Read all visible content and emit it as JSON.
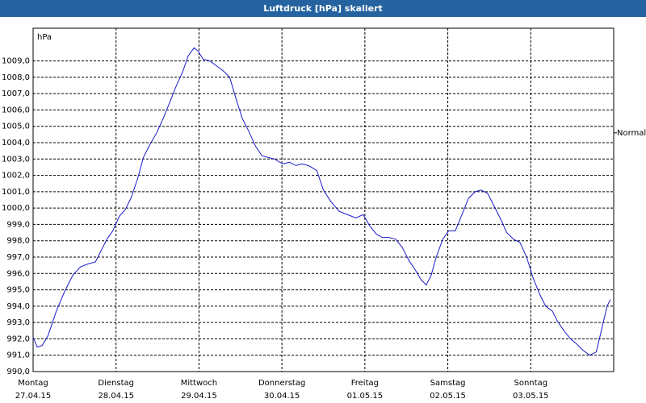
{
  "chart_data": {
    "type": "line",
    "title": "Luftdruck [hPa] skaliert",
    "y_label": "hPa",
    "x": [
      0,
      0.05,
      0.11,
      0.18,
      0.28,
      0.38,
      0.48,
      0.57,
      0.67,
      0.75,
      0.82,
      0.89,
      0.96,
      1.04,
      1.11,
      1.18,
      1.26,
      1.33,
      1.41,
      1.49,
      1.57,
      1.65,
      1.72,
      1.8,
      1.87,
      1.94,
      1.99,
      2.05,
      2.13,
      2.21,
      2.29,
      2.37,
      2.44,
      2.52,
      2.6,
      2.68,
      2.76,
      2.83,
      2.91,
      3.01,
      3.09,
      3.17,
      3.24,
      3.32,
      3.42,
      3.5,
      3.59,
      3.69,
      3.79,
      3.89,
      3.98,
      4.06,
      4.14,
      4.21,
      4.29,
      4.37,
      4.45,
      4.53,
      4.61,
      4.68,
      4.74,
      4.8,
      4.86,
      4.94,
      5.01,
      5.09,
      5.17,
      5.25,
      5.33,
      5.4,
      5.48,
      5.56,
      5.64,
      5.71,
      5.79,
      5.87,
      5.95,
      6.03,
      6.11,
      6.18,
      6.26,
      6.32,
      6.4,
      6.48,
      6.55,
      6.63,
      6.71,
      6.79,
      6.86,
      6.92,
      6.96
    ],
    "series": [
      {
        "color": "#1a1acc",
        "values": [
          992.1,
          991.5,
          991.6,
          992.2,
          993.7,
          994.9,
          995.9,
          996.4,
          996.6,
          996.7,
          997.4,
          998.1,
          998.6,
          999.5,
          999.9,
          1000.6,
          1001.8,
          1003.1,
          1003.9,
          1004.6,
          1005.5,
          1006.5,
          1007.4,
          1008.3,
          1009.3,
          1009.8,
          1009.6,
          1009.1,
          1009.0,
          1008.7,
          1008.4,
          1008.0,
          1006.8,
          1005.5,
          1004.7,
          1003.8,
          1003.2,
          1003.1,
          1003.0,
          1002.7,
          1002.8,
          1002.6,
          1002.7,
          1002.6,
          1002.3,
          1001.1,
          1000.4,
          999.8,
          999.6,
          999.4,
          999.6,
          998.9,
          998.4,
          998.2,
          998.2,
          998.1,
          997.6,
          996.8,
          996.2,
          995.6,
          995.3,
          995.9,
          997.0,
          998.1,
          998.6,
          998.6,
          999.6,
          1000.6,
          1001.0,
          1001.1,
          1000.9,
          1000.1,
          999.3,
          998.5,
          998.1,
          997.9,
          997.0,
          995.7,
          994.7,
          994.0,
          993.7,
          993.1,
          992.5,
          992.0,
          991.7,
          991.3,
          991.0,
          991.2,
          992.7,
          994.0,
          994.4
        ]
      }
    ],
    "xlim": [
      0,
      7
    ],
    "xticks": [
      {
        "value": 0,
        "label": [
          "Montag",
          "27.04.15"
        ]
      },
      {
        "value": 1,
        "label": [
          "Dienstag",
          "28.04.15"
        ]
      },
      {
        "value": 2,
        "label": [
          "Mittwoch",
          "29.04.15"
        ]
      },
      {
        "value": 3,
        "label": [
          "Donnerstag",
          "30.04.15"
        ]
      },
      {
        "value": 4,
        "label": [
          "Freitag",
          "01.05.15"
        ]
      },
      {
        "value": 5,
        "label": [
          "Samstag",
          "02.05.15"
        ]
      },
      {
        "value": 6,
        "label": [
          "Sonntag",
          "03.05.15"
        ]
      }
    ],
    "ylim": [
      990,
      1011
    ],
    "yticks": [
      {
        "value": 990,
        "label": "990,0"
      },
      {
        "value": 991,
        "label": "991,0"
      },
      {
        "value": 992,
        "label": "992,0"
      },
      {
        "value": 993,
        "label": "993,0"
      },
      {
        "value": 994,
        "label": "994,0"
      },
      {
        "value": 995,
        "label": "995,0"
      },
      {
        "value": 996,
        "label": "996,0"
      },
      {
        "value": 997,
        "label": "997,0"
      },
      {
        "value": 998,
        "label": "998,0"
      },
      {
        "value": 999,
        "label": "999,0"
      },
      {
        "value": 1000,
        "label": "1000,0"
      },
      {
        "value": 1001,
        "label": "1001,0"
      },
      {
        "value": 1002,
        "label": "1002,0"
      },
      {
        "value": 1003,
        "label": "1003,0"
      },
      {
        "value": 1004,
        "label": "1004,0"
      },
      {
        "value": 1005,
        "label": "1005,0"
      },
      {
        "value": 1006,
        "label": "1006,0"
      },
      {
        "value": 1007,
        "label": "1007,0"
      },
      {
        "value": 1008,
        "label": "1008,0"
      },
      {
        "value": 1009,
        "label": "1009,0"
      }
    ],
    "grid": true,
    "reference": {
      "label": "Normal",
      "value": 1004.6
    }
  }
}
